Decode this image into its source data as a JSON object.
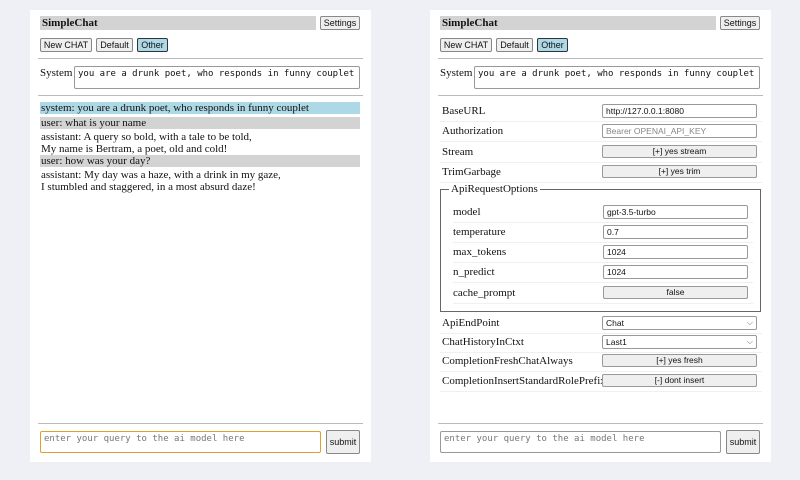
{
  "app_title": "SimpleChat",
  "settings_label": "Settings",
  "modes": [
    "New CHAT",
    "Default",
    "Other"
  ],
  "selected_mode": "Other",
  "system_label": "System",
  "system_prompt": "you are a drunk poet, who responds in funny couplet",
  "messages": [
    {
      "role": "system",
      "lines": [
        "system: you are a drunk poet, who responds in funny couplet"
      ]
    },
    {
      "role": "user",
      "lines": [
        "user: what is your name"
      ]
    },
    {
      "role": "assistant",
      "lines": [
        "assistant: A query so bold, with a tale to be told,",
        "My name is Bertram, a poet, old and cold!"
      ]
    },
    {
      "role": "user",
      "lines": [
        "user: how was your day?"
      ]
    },
    {
      "role": "assistant",
      "lines": [
        "assistant: My day was a haze, with a drink in my gaze,",
        "I stumbled and staggered, in a most absurd daze!"
      ]
    }
  ],
  "query_placeholder": "enter your query to the ai model here",
  "submit_label": "submit",
  "settings": {
    "base_url": {
      "label": "BaseURL",
      "value": "http://127.0.0.1:8080"
    },
    "authorization": {
      "label": "Authorization",
      "placeholder": "Bearer OPENAI_API_KEY"
    },
    "stream": {
      "label": "Stream",
      "value": "[+] yes stream"
    },
    "trim_garbage": {
      "label": "TrimGarbage",
      "value": "[+] yes trim"
    },
    "api_request_options": {
      "legend": "ApiRequestOptions",
      "model": {
        "label": "model",
        "value": "gpt-3.5-turbo"
      },
      "temperature": {
        "label": "temperature",
        "value": "0.7"
      },
      "max_tokens": {
        "label": "max_tokens",
        "value": "1024"
      },
      "n_predict": {
        "label": "n_predict",
        "value": "1024"
      },
      "cache_prompt": {
        "label": "cache_prompt",
        "value": "false"
      }
    },
    "api_endpoint": {
      "label": "ApiEndPoint",
      "value": "Chat"
    },
    "chat_history": {
      "label": "ChatHistoryInCtxt",
      "value": "Last1"
    },
    "fresh_chat": {
      "label": "CompletionFreshChatAlways",
      "value": "[+] yes fresh"
    },
    "insert_prefix": {
      "label": "CompletionInsertStandardRolePrefix",
      "value": "[-] dont insert"
    }
  },
  "colors": {
    "background": "#eef0f6",
    "selected": "#add8e6",
    "user_bg": "#d3d3d3",
    "focus": "#e0a030"
  }
}
